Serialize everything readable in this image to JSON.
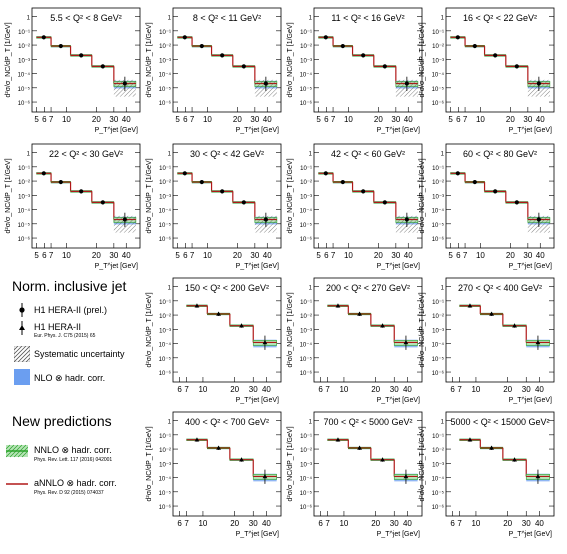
{
  "legend": {
    "title_inclusive": "Norm. inclusive jet",
    "h1_prelim": "H1 HERA-II (prel.)",
    "h1_pub": "H1 HERA-II",
    "h1_pub_ref": "Eur. Phys. J. C75 (2015) 65",
    "syst": "Systematic uncertainty",
    "nlo": "NLO ⊗ hadr. corr.",
    "title_new": "New predictions",
    "nnlo": "NNLO ⊗ hadr. corr.",
    "nnlo_ref": "Phys. Rev. Lett. 117 (2016) 042001",
    "annlo": "aNNLO ⊗ hadr. corr.",
    "annlo_ref": "Phys. Rev. D 92 (2015) 074037"
  },
  "colors": {
    "nlo": "#6b9ef0",
    "nnlo": "#2aa32a",
    "annlo": "#b01818",
    "data": "#000000",
    "syst": "#777777"
  },
  "chart_data": {
    "type": "line",
    "xlabel": "P_T^jet [GeV]",
    "ylabel": "d²σ/σ_NC/dP_T [1/GeV]",
    "x_scale": "log",
    "y_scale": "log",
    "x_tick_labels_low": [
      "5",
      "6",
      "7",
      "10",
      "20",
      "30",
      "40"
    ],
    "x_tick_labels_high": [
      "6",
      "7",
      "10",
      "20",
      "30",
      "40"
    ],
    "y_tick_labels": [
      "1",
      "10⁻¹",
      "10⁻²",
      "10⁻³",
      "10⁻⁴",
      "10⁻⁵",
      "10⁻⁶"
    ],
    "ylim": [
      1e-06,
      1
    ],
    "panels": [
      {
        "label": "5.5 < Q² <  8 GeV²",
        "bins": [
          5,
          7,
          11,
          18,
          30,
          50
        ],
        "values": [
          0.035,
          0.0085,
          0.0019,
          0.00032,
          2e-05
        ],
        "dataset": "prelim"
      },
      {
        "label": "8 < Q² < 11 GeV²",
        "bins": [
          5,
          7,
          11,
          18,
          30,
          50
        ],
        "values": [
          0.035,
          0.0085,
          0.0019,
          0.00032,
          2e-05
        ],
        "dataset": "prelim"
      },
      {
        "label": "11 < Q² < 16 GeV²",
        "bins": [
          5,
          7,
          11,
          18,
          30,
          50
        ],
        "values": [
          0.035,
          0.0085,
          0.0019,
          0.00032,
          2e-05
        ],
        "dataset": "prelim"
      },
      {
        "label": "16 < Q² < 22 GeV²",
        "bins": [
          5,
          7,
          11,
          18,
          30,
          50
        ],
        "values": [
          0.035,
          0.0085,
          0.0019,
          0.00032,
          2e-05
        ],
        "dataset": "prelim"
      },
      {
        "label": "22 < Q² < 30 GeV²",
        "bins": [
          5,
          7,
          11,
          18,
          30,
          50
        ],
        "values": [
          0.035,
          0.0085,
          0.0019,
          0.00032,
          2e-05
        ],
        "dataset": "prelim"
      },
      {
        "label": "30 < Q² < 42 GeV²",
        "bins": [
          5,
          7,
          11,
          18,
          30,
          50
        ],
        "values": [
          0.035,
          0.0085,
          0.0019,
          0.00032,
          2e-05
        ],
        "dataset": "prelim"
      },
      {
        "label": "42 < Q² < 60 GeV²",
        "bins": [
          5,
          7,
          11,
          18,
          30,
          50
        ],
        "values": [
          0.035,
          0.0085,
          0.0019,
          0.00032,
          2e-05
        ],
        "dataset": "prelim"
      },
      {
        "label": "60 < Q² < 80 GeV²",
        "bins": [
          5,
          7,
          11,
          18,
          30,
          50
        ],
        "values": [
          0.035,
          0.0085,
          0.0019,
          0.00032,
          2e-05
        ],
        "dataset": "prelim"
      },
      {
        "label": "150 < Q² < 200 GeV²",
        "bins": [
          7,
          11,
          18,
          30,
          50
        ],
        "values": [
          0.045,
          0.012,
          0.0018,
          0.00012
        ],
        "dataset": "pub"
      },
      {
        "label": "200 < Q² < 270 GeV²",
        "bins": [
          7,
          11,
          18,
          30,
          50
        ],
        "values": [
          0.045,
          0.012,
          0.0018,
          0.00012
        ],
        "dataset": "pub"
      },
      {
        "label": "270 < Q² < 400 GeV²",
        "bins": [
          7,
          11,
          18,
          30,
          50
        ],
        "values": [
          0.045,
          0.012,
          0.0018,
          0.00012
        ],
        "dataset": "pub"
      },
      {
        "label": "400 < Q² < 700 GeV²",
        "bins": [
          7,
          11,
          18,
          30,
          50
        ],
        "values": [
          0.045,
          0.012,
          0.0018,
          0.00012
        ],
        "dataset": "pub"
      },
      {
        "label": "700 < Q² < 5000 GeV²",
        "bins": [
          7,
          11,
          18,
          30,
          50
        ],
        "values": [
          0.045,
          0.012,
          0.0018,
          0.00012
        ],
        "dataset": "pub"
      },
      {
        "label": "5000 < Q² < 15000 GeV²",
        "bins": [
          7,
          11,
          18,
          30,
          50
        ],
        "values": [
          0.045,
          0.012,
          0.0018,
          0.00012
        ],
        "dataset": "pub"
      }
    ]
  }
}
